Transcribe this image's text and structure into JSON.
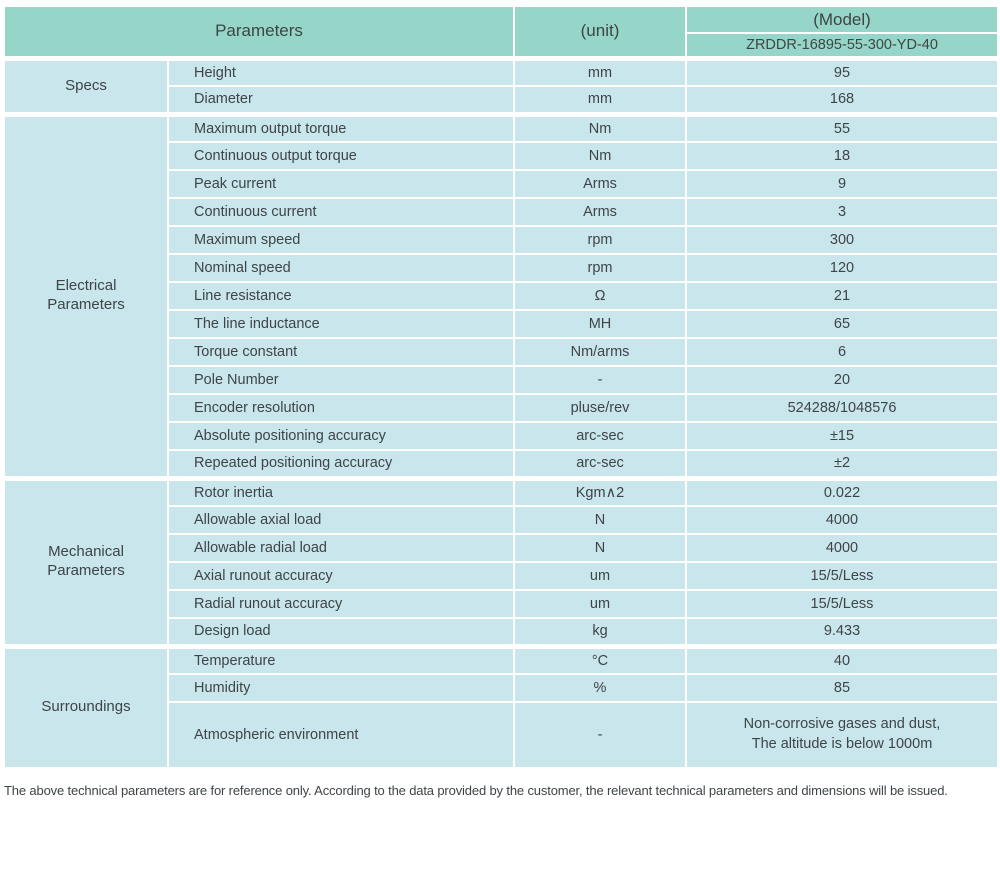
{
  "header": {
    "parameters_label": "Parameters",
    "unit_label": "(unit)",
    "model_label": "(Model)",
    "model_value": "ZRDDR-16895-55-300-YD-40"
  },
  "sections": [
    {
      "group": "Specs",
      "rows": [
        {
          "param": "Height",
          "unit": "mm",
          "value": "95"
        },
        {
          "param": "Diameter",
          "unit": "mm",
          "value": "168"
        }
      ]
    },
    {
      "group": "Electrical\nParameters",
      "rows": [
        {
          "param": "Maximum output torque",
          "unit": "Nm",
          "value": "55"
        },
        {
          "param": "Continuous output torque",
          "unit": "Nm",
          "value": "18"
        },
        {
          "param": "Peak current",
          "unit": "Arms",
          "value": "9"
        },
        {
          "param": "Continuous current",
          "unit": "Arms",
          "value": "3"
        },
        {
          "param": "Maximum speed",
          "unit": "rpm",
          "value": "300"
        },
        {
          "param": "Nominal speed",
          "unit": "rpm",
          "value": "120"
        },
        {
          "param": "Line resistance",
          "unit": "Ω",
          "value": "21"
        },
        {
          "param": "The line inductance",
          "unit": "MH",
          "value": "65"
        },
        {
          "param": "Torque constant",
          "unit": "Nm/arms",
          "value": "6"
        },
        {
          "param": "Pole Number",
          "unit": "-",
          "value": "20"
        },
        {
          "param": "Encoder resolution",
          "unit": "pluse/rev",
          "value": "524288/1048576"
        },
        {
          "param": "Absolute positioning accuracy",
          "unit": "arc-sec",
          "value": "±15"
        },
        {
          "param": "Repeated positioning accuracy",
          "unit": "arc-sec",
          "value": "±2"
        }
      ]
    },
    {
      "group": "Mechanical\nParameters",
      "rows": [
        {
          "param": "Rotor inertia",
          "unit": "Kgm∧2",
          "value": "0.022"
        },
        {
          "param": "Allowable axial load",
          "unit": "N",
          "value": "4000"
        },
        {
          "param": "Allowable radial load",
          "unit": "N",
          "value": "4000"
        },
        {
          "param": "Axial runout accuracy",
          "unit": "um",
          "value": "15/5/Less"
        },
        {
          "param": "Radial runout accuracy",
          "unit": "um",
          "value": "15/5/Less"
        },
        {
          "param": "Design load",
          "unit": "kg",
          "value": "9.433"
        }
      ]
    },
    {
      "group": "Surroundings",
      "rows": [
        {
          "param": "Temperature",
          "unit": "°C",
          "value": "40"
        },
        {
          "param": "Humidity",
          "unit": "%",
          "value": "85"
        },
        {
          "param": "Atmospheric environment",
          "unit": "-",
          "value": "Non-corrosive gases and dust,\nThe altitude is below 1000m"
        }
      ]
    }
  ],
  "footer": {
    "note": "The above technical parameters are for reference only. According to the data provided by the customer, the relevant technical parameters and dimensions will be issued."
  },
  "colors": {
    "header_bg": "#96d6c9",
    "cell_bg": "#c9e6ec",
    "border": "#ffffff",
    "text": "#3e4447"
  }
}
